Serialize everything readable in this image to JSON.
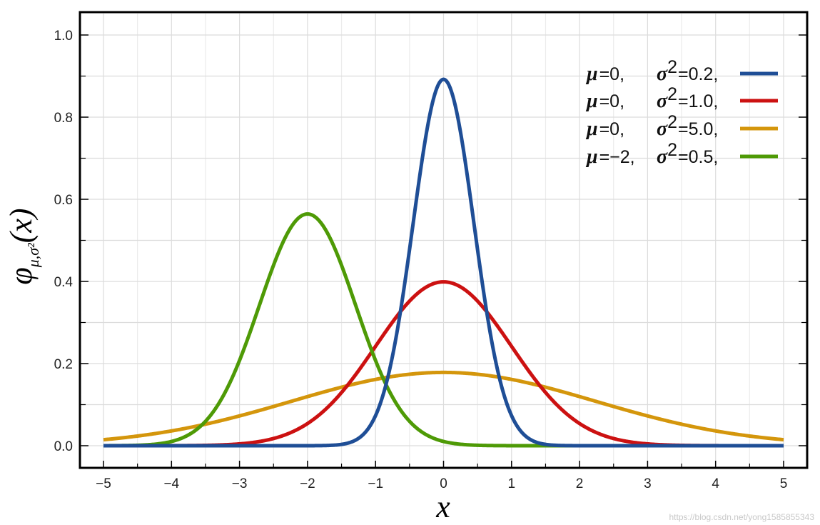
{
  "chart_data": {
    "type": "line",
    "xlabel": "x",
    "ylabel": "φ",
    "ylabel_sub": "μ,σ²",
    "ylabel_arg": "(x)",
    "xlim": [
      -5,
      5
    ],
    "ylim": [
      0,
      1.0
    ],
    "x_ticks": [
      -5,
      -4,
      -3,
      -2,
      -1,
      0,
      1,
      2,
      3,
      4,
      5
    ],
    "x_tick_labels": [
      "−5",
      "−4",
      "−3",
      "−2",
      "−1",
      "0",
      "1",
      "2",
      "3",
      "4",
      "5"
    ],
    "y_ticks": [
      0,
      0.2,
      0.4,
      0.6,
      0.8,
      1.0
    ],
    "y_tick_labels": [
      "0.0",
      "0.2",
      "0.4",
      "0.6",
      "0.8",
      "1.0"
    ],
    "grid": true,
    "legend_position": "top-right",
    "series": [
      {
        "mu": 0,
        "sigma2": 0.2,
        "mu_label": "0,",
        "sigma2_label": "0.2,",
        "color": "#1f4e96"
      },
      {
        "mu": 0,
        "sigma2": 1.0,
        "mu_label": "0,",
        "sigma2_label": "1.0,",
        "color": "#cc1111"
      },
      {
        "mu": 0,
        "sigma2": 5.0,
        "mu_label": "0,",
        "sigma2_label": "5.0,",
        "color": "#d4960c"
      },
      {
        "mu": -2,
        "sigma2": 0.5,
        "mu_label": "−2,",
        "sigma2_label": "0.5,",
        "color": "#4e9a06"
      }
    ],
    "legend_mu_symbol": "μ",
    "legend_sigma_symbol": "σ",
    "legend_sigma_sup": "2",
    "legend_eq": "="
  },
  "watermark": "https://blog.csdn.net/yong1585855343"
}
